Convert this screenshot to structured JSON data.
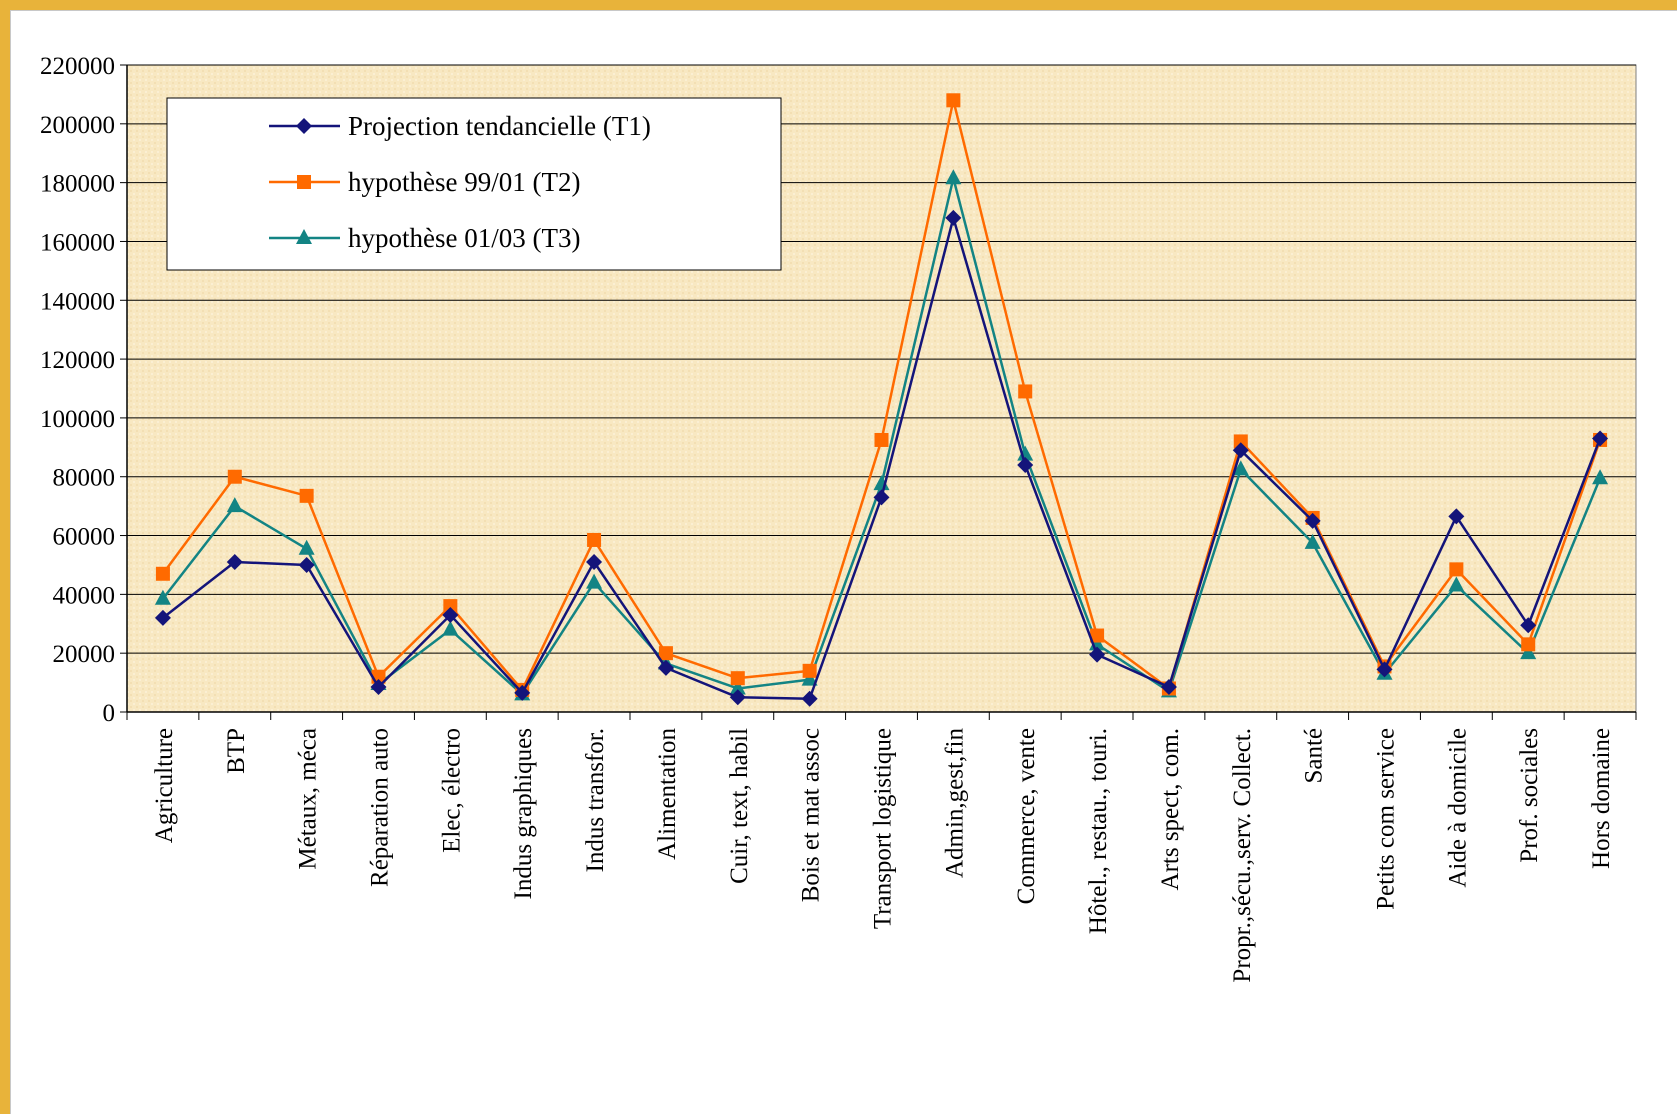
{
  "chart_data": {
    "type": "line",
    "title": "",
    "xlabel": "",
    "ylabel": "",
    "ylim": [
      0,
      220000
    ],
    "yticks": [
      "0",
      "20000",
      "40000",
      "60000",
      "80000",
      "100000",
      "120000",
      "140000",
      "160000",
      "180000",
      "200000",
      "220000"
    ],
    "grid": "horizontal",
    "legend_position": "top-left",
    "categories": [
      "Agriculture",
      "BTP",
      "Métaux, méca",
      "Réparation auto",
      "Elec, électro",
      "Indus graphiques",
      "Indus transfor.",
      "Alimentation",
      "Cuir, text, habil",
      "Bois et mat assoc",
      "Transport logistique",
      "Admin,gest,fin",
      "Commerce, vente",
      "Hôtel., restau., touri.",
      "Arts spect, com.",
      "Propr.,sécu.,serv. Collect.",
      "Santé",
      "Petits com service",
      "Aide à domicile",
      "Prof. sociales",
      "Hors domaine"
    ],
    "series": [
      {
        "name": "Projection tendancielle (T1)",
        "color": "#14147a",
        "marker": "diamond",
        "values": [
          32000,
          51000,
          50000,
          8500,
          33000,
          6500,
          51000,
          15000,
          5000,
          4500,
          73000,
          168000,
          84000,
          19500,
          8500,
          89000,
          65000,
          14500,
          66500,
          29500,
          93000
        ]
      },
      {
        "name": "hypothèse 99/01 (T2)",
        "color": "#ff6a00",
        "marker": "square",
        "values": [
          47000,
          80000,
          73500,
          12000,
          36000,
          7500,
          58500,
          20000,
          11500,
          14000,
          92500,
          208000,
          109000,
          26000,
          8000,
          92000,
          66000,
          15500,
          48500,
          23000,
          92500
        ]
      },
      {
        "name": "hypothèse 01/03 (T3)",
        "color": "#138484",
        "marker": "triangle",
        "values": [
          38500,
          70000,
          55500,
          9500,
          28000,
          6000,
          44000,
          16500,
          8000,
          11000,
          77500,
          181500,
          87500,
          23000,
          7000,
          82500,
          57500,
          13000,
          43000,
          20000,
          79500
        ]
      }
    ]
  },
  "colors": {
    "frame": "#e8b33a",
    "plot_background": "#f8e8c2",
    "gridline": "#000000"
  }
}
